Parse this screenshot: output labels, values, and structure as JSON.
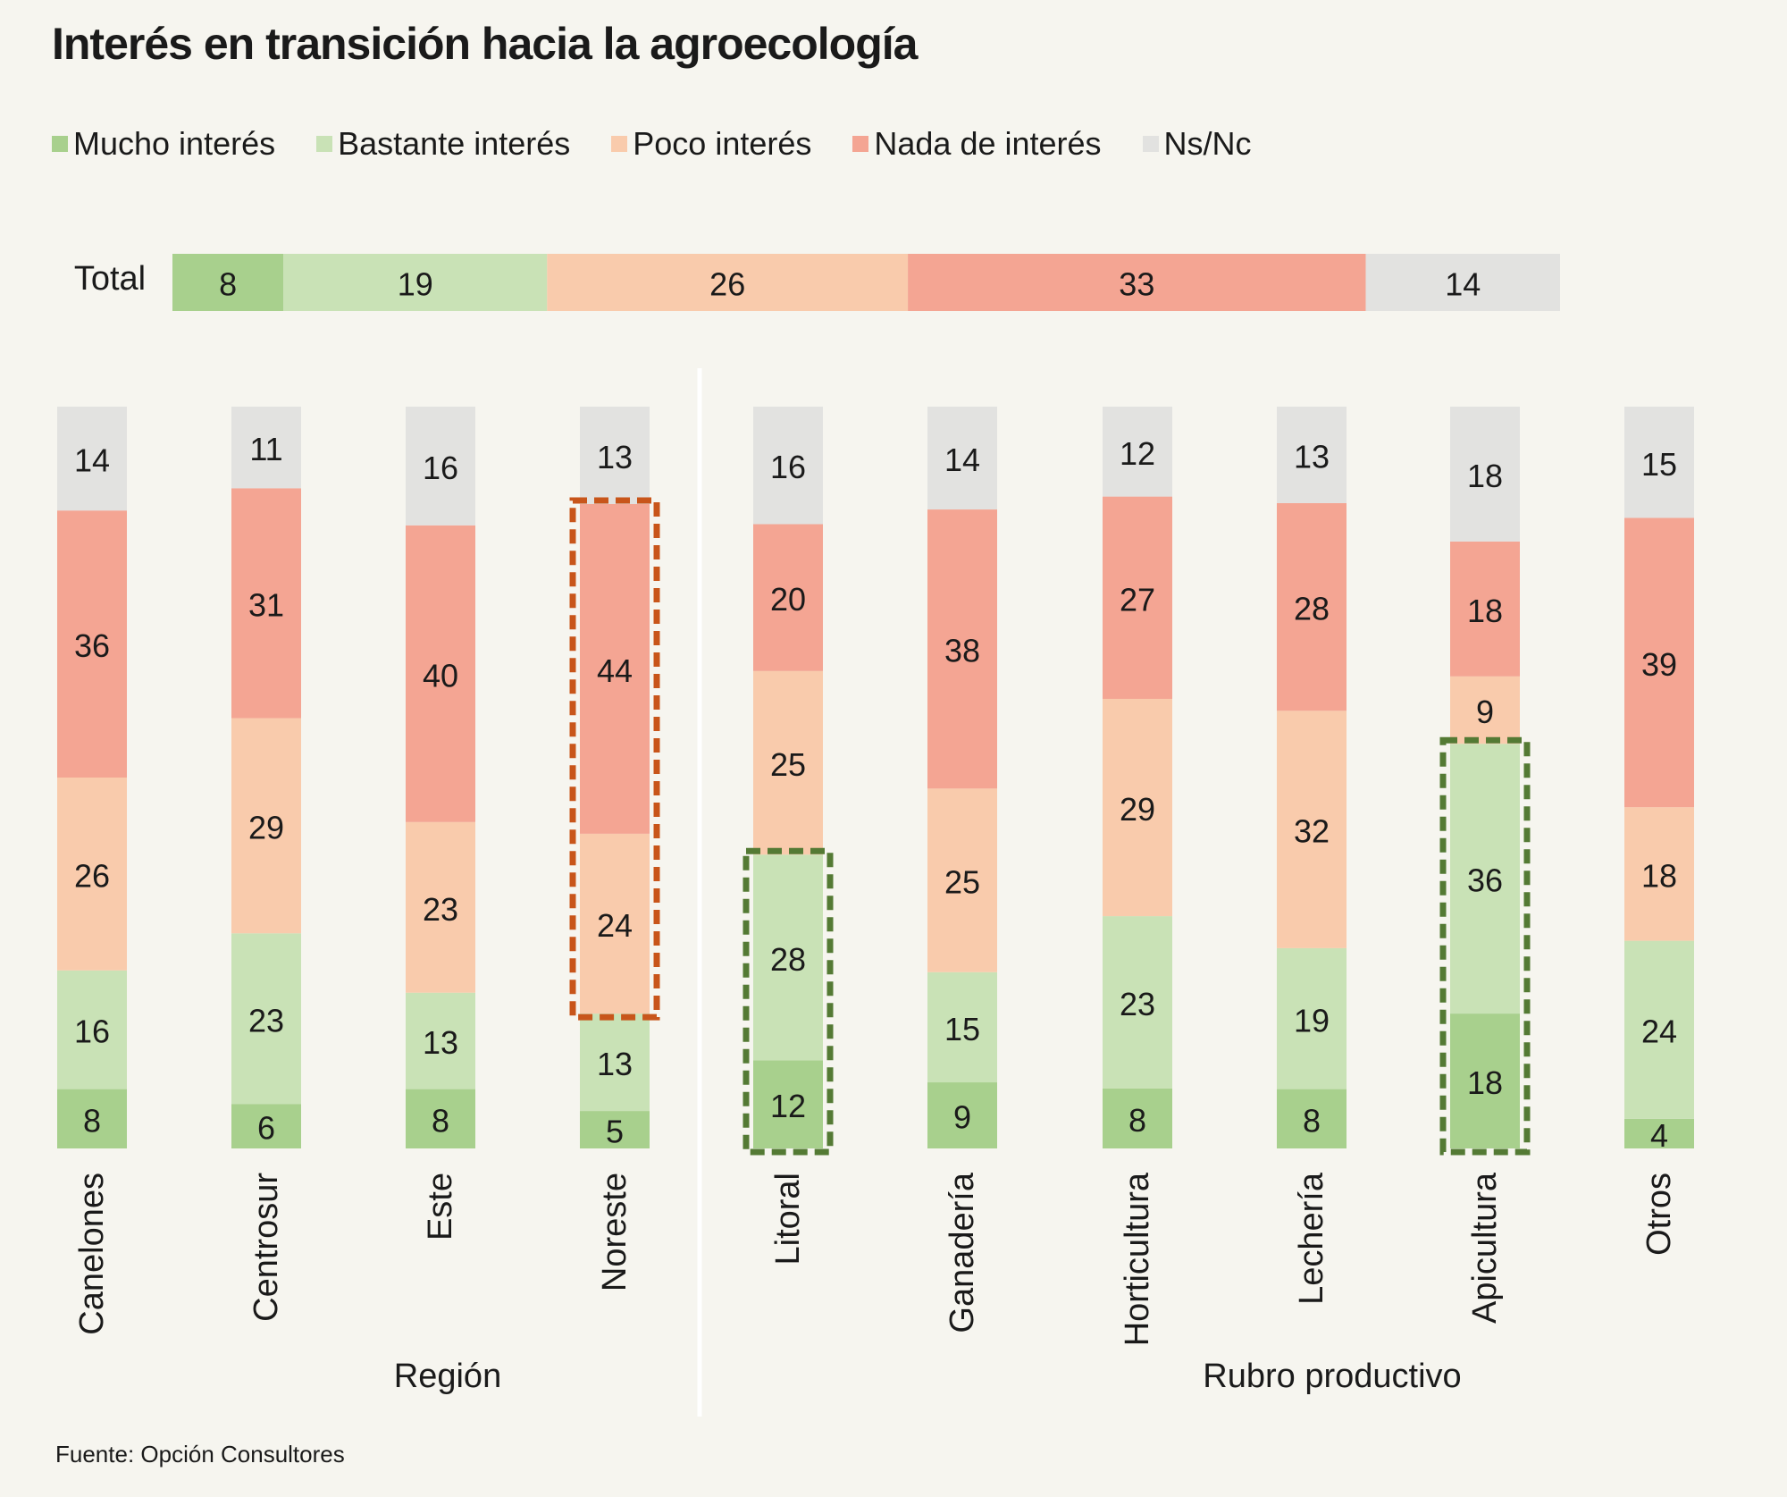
{
  "title": "Interés en transición hacia la agroecología",
  "source": "Fuente: Opción Consultores",
  "legend": [
    {
      "label": "Mucho interés",
      "color": "#a8d08d"
    },
    {
      "label": "Bastante interés",
      "color": "#c9e2b6"
    },
    {
      "label": "Poco interés",
      "color": "#f9cbac"
    },
    {
      "label": "Nada de interés",
      "color": "#f4a593"
    },
    {
      "label": "Ns/Nc",
      "color": "#e2e2e0"
    }
  ],
  "chart_data": [
    {
      "type": "bar",
      "orientation": "horizontal",
      "stacked": true,
      "categories": [
        "Total"
      ],
      "series": [
        {
          "name": "Mucho interés",
          "values": [
            8
          ]
        },
        {
          "name": "Bastante interés",
          "values": [
            19
          ]
        },
        {
          "name": "Poco interés",
          "values": [
            26
          ]
        },
        {
          "name": "Nada de interés",
          "values": [
            33
          ]
        },
        {
          "name": "Ns/Nc",
          "values": [
            14
          ]
        }
      ]
    },
    {
      "type": "bar",
      "orientation": "vertical",
      "stacked": true,
      "groups": [
        {
          "label": "Región",
          "categories": [
            "Canelones",
            "Centrosur",
            "Este",
            "Noreste"
          ]
        },
        {
          "label": "Rubro productivo",
          "categories": [
            "Litoral",
            "Ganadería",
            "Horticultura",
            "Lechería",
            "Apicultura",
            "Otros"
          ]
        }
      ],
      "categories": [
        "Canelones",
        "Centrosur",
        "Este",
        "Noreste",
        "Litoral",
        "Ganadería",
        "Horticultura",
        "Lechería",
        "Apicultura",
        "Otros"
      ],
      "series": [
        {
          "name": "Mucho interés",
          "values": [
            8,
            6,
            8,
            5,
            12,
            9,
            8,
            8,
            18,
            4
          ]
        },
        {
          "name": "Bastante interés",
          "values": [
            16,
            23,
            13,
            13,
            28,
            15,
            23,
            19,
            36,
            24
          ]
        },
        {
          "name": "Poco interés",
          "values": [
            26,
            29,
            23,
            24,
            25,
            25,
            29,
            32,
            9,
            18
          ]
        },
        {
          "name": "Nada de interés",
          "values": [
            36,
            31,
            40,
            44,
            20,
            38,
            27,
            28,
            18,
            39
          ]
        },
        {
          "name": "Ns/Nc",
          "values": [
            14,
            11,
            16,
            13,
            16,
            14,
            12,
            13,
            18,
            15
          ]
        }
      ],
      "highlights": [
        {
          "category": "Noreste",
          "series": [
            "Poco interés",
            "Nada de interés"
          ],
          "color": "#c8551a"
        },
        {
          "category": "Litoral",
          "series": [
            "Mucho interés",
            "Bastante interés"
          ],
          "color": "#547a34"
        },
        {
          "category": "Apicultura",
          "series": [
            "Mucho interés",
            "Bastante interés"
          ],
          "color": "#547a34"
        }
      ]
    }
  ]
}
